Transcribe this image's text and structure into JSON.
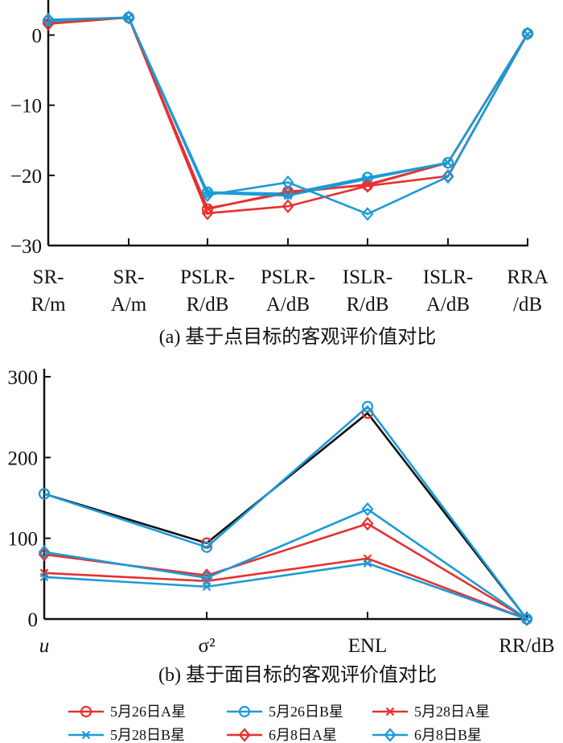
{
  "colors": {
    "red": "#e8302e",
    "blue": "#1a9bd7",
    "black": "#111111"
  },
  "legend": [
    {
      "label": "5月26日A星",
      "color": "#e8302e",
      "marker": "circle"
    },
    {
      "label": "5月26日B星",
      "color": "#1a9bd7",
      "marker": "circle"
    },
    {
      "label": "5月28日A星",
      "color": "#e8302e",
      "marker": "x"
    },
    {
      "label": "5月28日B星",
      "color": "#1a9bd7",
      "marker": "x"
    },
    {
      "label": "6月8日A星",
      "color": "#e8302e",
      "marker": "diamond"
    },
    {
      "label": "6月8日B星",
      "color": "#1a9bd7",
      "marker": "diamond"
    }
  ],
  "chart_data": [
    {
      "type": "line",
      "title": "(a) 基于点目标的客观评价值对比",
      "categories": [
        [
          "SR-",
          "R/m"
        ],
        [
          "SR-",
          "A/m"
        ],
        [
          "PSLR-",
          "R/dB"
        ],
        [
          "PSLR-",
          "A/dB"
        ],
        [
          "ISLR-",
          "R/dB"
        ],
        [
          "ISLR-",
          "A/dB"
        ],
        [
          "RRA",
          "/dB"
        ]
      ],
      "ylim": [
        -30,
        5
      ],
      "yticks": [
        0,
        -10,
        -20,
        -30
      ],
      "ytick_labels": [
        "0",
        "−10",
        "−20",
        "−30"
      ],
      "series": [
        {
          "name": "5月26日A星",
          "values": [
            2.0,
            2.5,
            -24.8,
            -22.3,
            -21.4,
            -18.2,
            0.2
          ]
        },
        {
          "name": "5月26日B星",
          "values": [
            2.0,
            2.5,
            -22.4,
            -22.6,
            -20.3,
            -18.2,
            0.2
          ]
        },
        {
          "name": "5月28日A星",
          "values": [
            1.8,
            2.5,
            -24.7,
            -22.5,
            -21.3,
            -18.2,
            0.1
          ]
        },
        {
          "name": "5月28日B星",
          "values": [
            1.8,
            2.5,
            -22.5,
            -22.9,
            -20.5,
            -18.2,
            0.1
          ]
        },
        {
          "name": "6月8日A星",
          "values": [
            1.6,
            2.5,
            -25.4,
            -24.4,
            -21.5,
            -20.1,
            0.2
          ]
        },
        {
          "name": "6月8日B星",
          "values": [
            2.2,
            2.5,
            -22.8,
            -21.0,
            -25.5,
            -20.2,
            0.2
          ]
        }
      ]
    },
    {
      "type": "line",
      "title": "(b) 基于面目标的客观评价值对比",
      "categories": [
        [
          "u"
        ],
        [
          "σ²"
        ],
        [
          "ENL"
        ],
        [
          "RR/dB"
        ]
      ],
      "ylim": [
        0,
        310
      ],
      "yticks": [
        0,
        100,
        200,
        300
      ],
      "ytick_labels": [
        "0",
        "100",
        "200",
        "300"
      ],
      "series": [
        {
          "name": "5月26日A星",
          "values": [
            155,
            94,
            255,
            0
          ],
          "line_color": "#111111"
        },
        {
          "name": "5月26日B星",
          "values": [
            155,
            89,
            263,
            0
          ]
        },
        {
          "name": "5月28日A星",
          "values": [
            57,
            47,
            75,
            0
          ]
        },
        {
          "name": "5月28日B星",
          "values": [
            52,
            40,
            69,
            0
          ]
        },
        {
          "name": "6月8日A星",
          "values": [
            80,
            54,
            118,
            0
          ]
        },
        {
          "name": "6月8日B星",
          "values": [
            83,
            51,
            136,
            0
          ]
        }
      ]
    }
  ]
}
